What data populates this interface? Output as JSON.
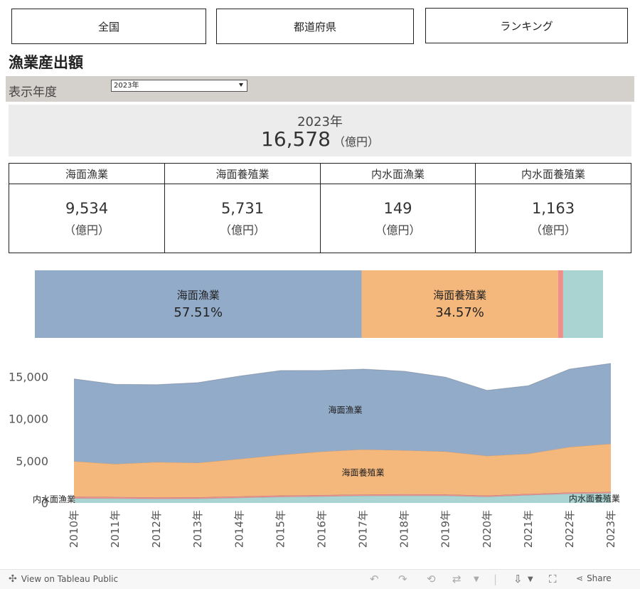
{
  "nav": [
    {
      "label": "全国"
    },
    {
      "label": "都道府県"
    },
    {
      "label": "ランキング"
    }
  ],
  "page_title": "漁業産出額",
  "year_filter": {
    "label": "表示年度",
    "selected": "2023年"
  },
  "total": {
    "year": "2023年",
    "value": "16,578",
    "unit": "（億円）"
  },
  "kpis": [
    {
      "label": "海面漁業",
      "value": "9,534",
      "unit": "（億円）"
    },
    {
      "label": "海面養殖業",
      "value": "5,731",
      "unit": "（億円）"
    },
    {
      "label": "内水面漁業",
      "value": "149",
      "unit": "（億円）"
    },
    {
      "label": "内水面養殖業",
      "value": "1,163",
      "unit": "（億円）"
    }
  ],
  "chart_data": [
    {
      "type": "bar",
      "orientation": "horizontal-stacked-100",
      "segments": [
        {
          "name": "海面漁業",
          "share": 57.51,
          "label": "57.51%",
          "color": "#92abc9"
        },
        {
          "name": "海面養殖業",
          "share": 34.57,
          "label": "34.57%",
          "color": "#f5b87c"
        },
        {
          "name": "内水面漁業",
          "share": 0.9,
          "label": "",
          "color": "#ef8f8a"
        },
        {
          "name": "内水面養殖業",
          "share": 7.02,
          "label": "",
          "color": "#aad4d1"
        }
      ]
    },
    {
      "type": "area",
      "stacked": true,
      "x": [
        "2010年",
        "2011年",
        "2012年",
        "2013年",
        "2014年",
        "2015年",
        "2016年",
        "2017年",
        "2018年",
        "2019年",
        "2020年",
        "2021年",
        "2022年",
        "2023年"
      ],
      "yticks": [
        0,
        5000,
        10000,
        15000
      ],
      "ytick_labels": [
        "0",
        "5,000",
        "10,000",
        "15,000"
      ],
      "ylim": [
        0,
        17500
      ],
      "series": [
        {
          "name": "内水面養殖業",
          "color": "#aad4d1",
          "label_x": "2022年",
          "values": [
            550,
            520,
            490,
            510,
            620,
            720,
            780,
            850,
            870,
            860,
            740,
            930,
            1100,
            1163
          ]
        },
        {
          "name": "内水面漁業",
          "color": "#ef8f8a",
          "label_x": "2010年",
          "values": [
            200,
            190,
            180,
            170,
            170,
            165,
            160,
            160,
            160,
            155,
            145,
            145,
            150,
            149
          ]
        },
        {
          "name": "海面養殖業",
          "color": "#f5b87c",
          "label_x": "2017年",
          "values": [
            4200,
            3930,
            4190,
            4100,
            4440,
            4830,
            5170,
            5360,
            5230,
            5110,
            4720,
            4780,
            5400,
            5731
          ]
        },
        {
          "name": "海面漁業",
          "color": "#92abc9",
          "label_x": "2017年",
          "values": [
            9790,
            9450,
            9200,
            9520,
            9840,
            10020,
            9630,
            9530,
            9390,
            8820,
            7780,
            8070,
            9250,
            9534
          ]
        }
      ]
    }
  ],
  "footer": {
    "view_label": "View on Tableau Public",
    "share_label": "Share"
  }
}
